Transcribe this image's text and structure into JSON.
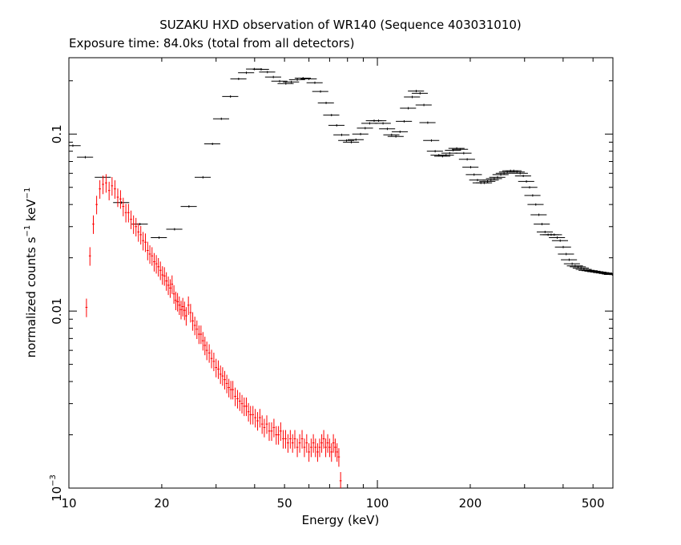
{
  "chart_data": {
    "type": "scatter",
    "title": "SUZAKU HXD observation of WR140 (Sequence 403031010)",
    "subtitle": "Exposure time: 84.0ks (total from all detectors)",
    "xlabel": "Energy (keV)",
    "ylabel_main": "normalized counts s",
    "ylabel_sup1": "−1",
    "ylabel_mid": " keV",
    "ylabel_sup2": "−1",
    "xscale": "log",
    "yscale": "log",
    "xlim": [
      10,
      580
    ],
    "ylim": [
      0.001,
      0.27
    ],
    "x_tick_labels": [
      {
        "value": 10,
        "label": "10"
      },
      {
        "value": 20,
        "label": "20"
      },
      {
        "value": 50,
        "label": "50"
      },
      {
        "value": 100,
        "label": "100"
      },
      {
        "value": 200,
        "label": "200"
      },
      {
        "value": 500,
        "label": "500"
      }
    ],
    "y_tick_labels": [
      {
        "value": 0.1,
        "label": "0.1"
      },
      {
        "value": 0.01,
        "label": "0.01"
      },
      {
        "value": 0.001,
        "label": "10",
        "sup": "−3"
      }
    ],
    "series": [
      {
        "color": "#000000",
        "x": [
          10.3,
          11.3,
          12.9,
          14.8,
          17.0,
          19.6,
          22.0,
          24.5,
          27.2,
          29.2,
          31.2,
          33.4,
          35.5,
          37.6,
          39.9,
          42.0,
          44.0,
          46.0,
          48.2,
          50.5,
          52.6,
          55.0,
          57.4,
          60.0,
          62.7,
          65.4,
          68.2,
          71.0,
          73.8,
          76.6,
          79.4,
          82.3,
          85.2,
          88.2,
          91.3,
          94.4,
          97.6,
          100.9,
          104.3,
          107.7,
          111.2,
          114.8,
          118.4,
          122.1,
          125.9,
          129.7,
          133.6,
          137.5,
          141.5,
          145.6,
          149.7,
          153.9,
          158.2,
          162.6,
          167.0,
          171.5,
          176.1,
          180.8,
          185.6,
          190.5,
          195.5,
          200.6,
          205.8,
          211.1,
          216.5,
          222.0,
          227.6,
          233.4,
          239.2,
          245.2,
          251.2,
          257.4,
          263.7,
          270.1,
          276.7,
          283.4,
          290.2,
          297.1,
          304.2,
          311.4,
          318.7,
          326.2,
          333.8,
          341.6,
          349.5,
          357.6,
          365.8,
          374.2,
          382.7,
          391.4,
          400.3,
          409.3,
          418.5,
          427.9,
          437.5,
          447.2,
          457.2,
          467.3,
          477.6,
          488.2,
          498.9,
          509.8,
          521.0,
          532.3,
          543.9,
          555.7,
          567.8,
          577.0
        ],
        "y": [
          0.086,
          0.074,
          0.057,
          0.041,
          0.031,
          0.026,
          0.029,
          0.039,
          0.057,
          0.088,
          0.122,
          0.163,
          0.205,
          0.222,
          0.233,
          0.232,
          0.224,
          0.21,
          0.199,
          0.193,
          0.197,
          0.203,
          0.207,
          0.205,
          0.195,
          0.174,
          0.15,
          0.128,
          0.112,
          0.099,
          0.092,
          0.09,
          0.093,
          0.1,
          0.108,
          0.115,
          0.119,
          0.119,
          0.115,
          0.107,
          0.099,
          0.097,
          0.103,
          0.118,
          0.14,
          0.162,
          0.175,
          0.17,
          0.146,
          0.116,
          0.092,
          0.08,
          0.076,
          0.075,
          0.076,
          0.078,
          0.081,
          0.083,
          0.082,
          0.078,
          0.072,
          0.065,
          0.059,
          0.055,
          0.053,
          0.053,
          0.054,
          0.055,
          0.056,
          0.057,
          0.059,
          0.06,
          0.061,
          0.062,
          0.062,
          0.061,
          0.06,
          0.058,
          0.054,
          0.05,
          0.045,
          0.04,
          0.035,
          0.031,
          0.028,
          0.027,
          0.027,
          0.027,
          0.026,
          0.025,
          0.023,
          0.021,
          0.0195,
          0.0185,
          0.018,
          0.0178,
          0.0175,
          0.0172,
          0.017,
          0.0169,
          0.0168,
          0.0167,
          0.0166,
          0.0165,
          0.0164,
          0.0163,
          0.0162,
          0.0161
        ],
        "xerr_rel": 0.06,
        "yerr_rel": 0.015
      },
      {
        "color": "#ff0000",
        "x": [
          11.4,
          11.7,
          12.0,
          12.3,
          12.6,
          12.9,
          13.2,
          13.5,
          13.8,
          14.1,
          14.4,
          14.7,
          15.0,
          15.3,
          15.6,
          15.9,
          16.2,
          16.5,
          16.8,
          17.1,
          17.4,
          17.7,
          18.0,
          18.3,
          18.6,
          18.9,
          19.2,
          19.5,
          19.8,
          20.1,
          20.4,
          20.7,
          21.0,
          21.3,
          21.6,
          21.9,
          22.2,
          22.5,
          22.8,
          23.1,
          23.4,
          23.7,
          24.0,
          24.4,
          24.8,
          25.2,
          25.6,
          26.0,
          26.4,
          26.8,
          27.2,
          27.6,
          28.0,
          28.5,
          29.0,
          29.5,
          30.0,
          30.5,
          31.0,
          31.5,
          32.0,
          32.5,
          33.0,
          33.5,
          34.0,
          34.6,
          35.2,
          35.8,
          36.4,
          37.0,
          37.6,
          38.2,
          38.8,
          39.5,
          40.2,
          40.9,
          41.6,
          42.3,
          43.0,
          43.8,
          44.6,
          45.4,
          46.2,
          47.0,
          47.8,
          48.6,
          49.5,
          50.4,
          51.3,
          52.2,
          53.1,
          54.0,
          55.0,
          56.0,
          57.0,
          58.0,
          59.0,
          60.0,
          61.0,
          62.0,
          63.0,
          64.0,
          65.0,
          66.0,
          67.0,
          68.0,
          69.0,
          70.0,
          71.0,
          72.0,
          73.0,
          74.0,
          75.0,
          76.0
        ],
        "y": [
          0.0105,
          0.0205,
          0.031,
          0.04,
          0.049,
          0.052,
          0.053,
          0.048,
          0.051,
          0.049,
          0.044,
          0.043,
          0.039,
          0.036,
          0.036,
          0.033,
          0.031,
          0.03,
          0.028,
          0.027,
          0.025,
          0.0245,
          0.022,
          0.021,
          0.0205,
          0.019,
          0.0185,
          0.0178,
          0.017,
          0.016,
          0.0158,
          0.0148,
          0.014,
          0.0135,
          0.0142,
          0.0125,
          0.0115,
          0.0113,
          0.0108,
          0.0102,
          0.0106,
          0.0101,
          0.0094,
          0.0108,
          0.0098,
          0.0088,
          0.0083,
          0.0079,
          0.0074,
          0.0074,
          0.0068,
          0.0064,
          0.006,
          0.0058,
          0.0054,
          0.0052,
          0.0048,
          0.0047,
          0.0044,
          0.0043,
          0.0041,
          0.0039,
          0.0037,
          0.0036,
          0.0036,
          0.0033,
          0.0032,
          0.0031,
          0.003,
          0.0029,
          0.0029,
          0.0027,
          0.0026,
          0.0026,
          0.0025,
          0.0024,
          0.0025,
          0.0023,
          0.0022,
          0.0023,
          0.0021,
          0.0021,
          0.0022,
          0.002,
          0.002,
          0.0021,
          0.0019,
          0.0019,
          0.0018,
          0.0019,
          0.0018,
          0.0019,
          0.0017,
          0.0018,
          0.0019,
          0.0017,
          0.0018,
          0.0016,
          0.0017,
          0.0018,
          0.0017,
          0.0016,
          0.0017,
          0.0018,
          0.0019,
          0.0017,
          0.0018,
          0.0017,
          0.0016,
          0.0018,
          0.0017,
          0.0016,
          0.0015,
          0.0011
        ],
        "xerr_rel": 0.008,
        "yerr_rel": 0.12
      }
    ]
  }
}
